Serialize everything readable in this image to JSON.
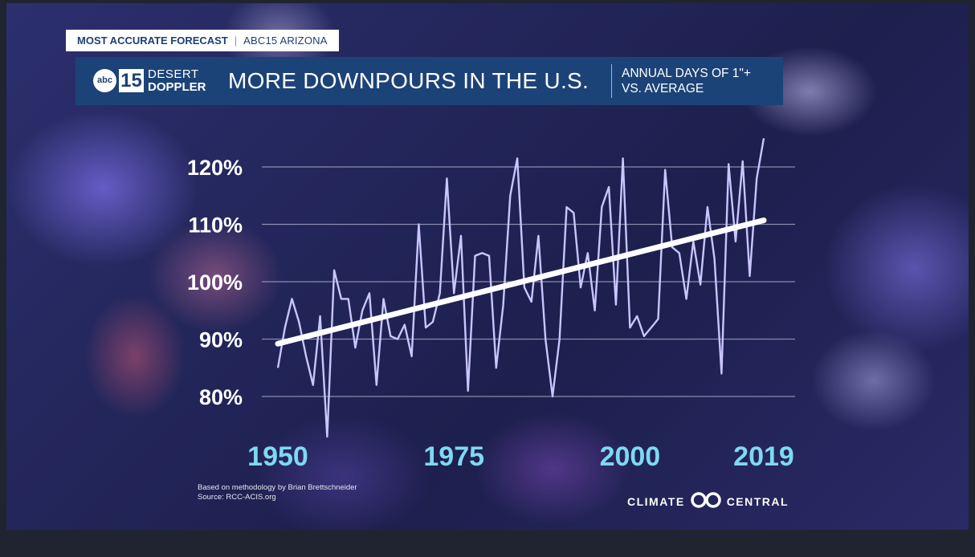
{
  "header": {
    "tagline_left": "MOST ACCURATE FORECAST",
    "tagline_right": "ABC15 ARIZONA",
    "logo_abc": "abc",
    "logo_number": "15",
    "logo_word1": "DESERT",
    "logo_word2": "DOPPLER",
    "title": "MORE DOWNPOURS IN THE U.S.",
    "subtitle_line1": "ANNUAL DAYS OF 1\"+",
    "subtitle_line2": "VS. AVERAGE"
  },
  "chart_data": {
    "type": "line",
    "title": "MORE DOWNPOURS IN THE U.S.",
    "subtitle": "ANNUAL DAYS OF 1\"+ VS. AVERAGE",
    "xlabel": "",
    "ylabel": "",
    "xlim": [
      1950,
      2019
    ],
    "ylim": [
      76,
      128
    ],
    "yticks": [
      80,
      90,
      100,
      110,
      120
    ],
    "ytick_labels": [
      "80%",
      "90%",
      "100%",
      "110%",
      "120%"
    ],
    "xticks": [
      1950,
      1975,
      2000,
      2019
    ],
    "xtick_labels": [
      "1950",
      "1975",
      "2000",
      "2019"
    ],
    "grid": true,
    "series": [
      {
        "name": "Annual days of 1\"+ vs. average",
        "x": [
          1950,
          1951,
          1952,
          1953,
          1954,
          1955,
          1956,
          1957,
          1958,
          1959,
          1960,
          1961,
          1962,
          1963,
          1964,
          1965,
          1966,
          1967,
          1968,
          1969,
          1970,
          1971,
          1972,
          1973,
          1974,
          1975,
          1976,
          1977,
          1978,
          1979,
          1980,
          1981,
          1982,
          1983,
          1984,
          1985,
          1986,
          1987,
          1988,
          1989,
          1990,
          1991,
          1992,
          1993,
          1994,
          1995,
          1996,
          1997,
          1998,
          1999,
          2000,
          2001,
          2002,
          2003,
          2004,
          2005,
          2006,
          2007,
          2008,
          2009,
          2010,
          2011,
          2012,
          2013,
          2014,
          2015,
          2016,
          2017,
          2018,
          2019
        ],
        "values": [
          85,
          92,
          97,
          93,
          87,
          82,
          94,
          73,
          102,
          97,
          97,
          88.5,
          95,
          98,
          82,
          97,
          90.5,
          90,
          92.5,
          87,
          110,
          92,
          93,
          98,
          118,
          98,
          108,
          81,
          104.5,
          105,
          104.5,
          85,
          96,
          115,
          121.5,
          99,
          96.5,
          108,
          90,
          80,
          90,
          113,
          112,
          99,
          105,
          95,
          113,
          116.5,
          96,
          121.5,
          92,
          94,
          90.5,
          92,
          93.5,
          119.5,
          106,
          105,
          97,
          107,
          99.5,
          113,
          104,
          84,
          120.5,
          107,
          121,
          101,
          118,
          125
        ]
      },
      {
        "name": "Trend",
        "x": [
          1950,
          2019
        ],
        "values": [
          89.2,
          110.7
        ]
      }
    ]
  },
  "footer": {
    "source_line1": "Based on methodology by Brian Brettschneider",
    "source_line2": "Source: RCC-ACIS.org",
    "brand_left": "CLIMATE",
    "brand_right": "CENTRAL"
  },
  "colors": {
    "title_bar": "#1c4377",
    "data_line": "#c9c6ff",
    "trend_line": "#ffffff",
    "gridline": "#a6a6c2",
    "year_labels": "#7fd8f2"
  }
}
